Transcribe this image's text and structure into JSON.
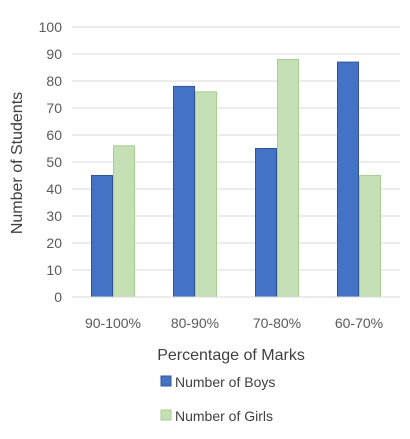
{
  "chart_data": {
    "type": "bar",
    "title": "",
    "xlabel": "Percentage of Marks",
    "ylabel": "Number of Students",
    "categories": [
      "90-100%",
      "80-90%",
      "70-80%",
      "60-70%"
    ],
    "series": [
      {
        "name": "Number of Boys",
        "values": [
          45,
          78,
          55,
          87
        ],
        "color": "#4472C4"
      },
      {
        "name": "Number of Girls",
        "values": [
          56,
          76,
          88,
          45
        ],
        "color": "#C5E0B4"
      }
    ],
    "ylim": [
      0,
      100
    ],
    "yticks": [
      0,
      10,
      20,
      30,
      40,
      50,
      60,
      70,
      80,
      90,
      100
    ],
    "grid": true,
    "legend": "bottom"
  }
}
